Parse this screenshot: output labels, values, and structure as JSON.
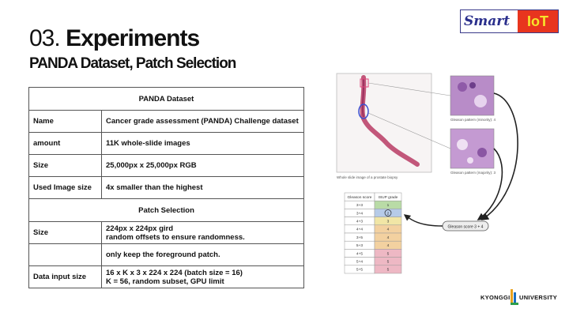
{
  "logo": {
    "smart": "Smart",
    "iot": "IoT"
  },
  "title": {
    "number": "03.",
    "text": "Experiments"
  },
  "subtitle": "PANDA Dataset, Patch Selection",
  "table": {
    "section1": "PANDA Dataset",
    "rows1": [
      {
        "label": "Name",
        "value": "Cancer grade assessment (PANDA) Challenge dataset"
      },
      {
        "label": "amount",
        "value": "11K whole-slide images"
      },
      {
        "label": "Size",
        "value": "25,000px x 25,000px RGB"
      },
      {
        "label": "Used Image size",
        "value": "4x smaller than the highest"
      }
    ],
    "section2": "Patch Selection",
    "rows2": [
      {
        "label": "Size",
        "line1": "224px x 224px gird",
        "line2": "random offsets to ensure randomness."
      },
      {
        "label": "",
        "line1": "only keep the foreground patch.",
        "line2": ""
      },
      {
        "label": "Data input size",
        "line1": "16 x K x 3 x 224 x 224 (batch size = 16)",
        "line2": "K = 56, random subset, GPU limit"
      }
    ]
  },
  "figure": {
    "caption_slide": "Whole slide image of a prostate biopsy",
    "caption_top": "Gleason pattern (minority): 4",
    "caption_mid": "Gleason pattern (majority): 3",
    "score_label": "Gleason score 3 + 4",
    "grade_table": {
      "headers": [
        "Gleason score",
        "ISUP grade"
      ],
      "rows": [
        [
          "3+3",
          "1"
        ],
        [
          "3+4",
          "2"
        ],
        [
          "4+3",
          "3"
        ],
        [
          "4+4",
          "4"
        ],
        [
          "3+5",
          "4"
        ],
        [
          "5+3",
          "4"
        ],
        [
          "4+5",
          "5"
        ],
        [
          "5+4",
          "5"
        ],
        [
          "5+5",
          "5"
        ]
      ],
      "colors": [
        "#b9dba6",
        "#b6cbe8",
        "#f1e6a6",
        "#f3d1a0",
        "#f3d1a0",
        "#f3d1a0",
        "#eeb8c4",
        "#eeb8c4",
        "#eeb8c4"
      ]
    }
  },
  "footer": {
    "left": "KYONGGI",
    "right": "UNIVERSITY"
  }
}
